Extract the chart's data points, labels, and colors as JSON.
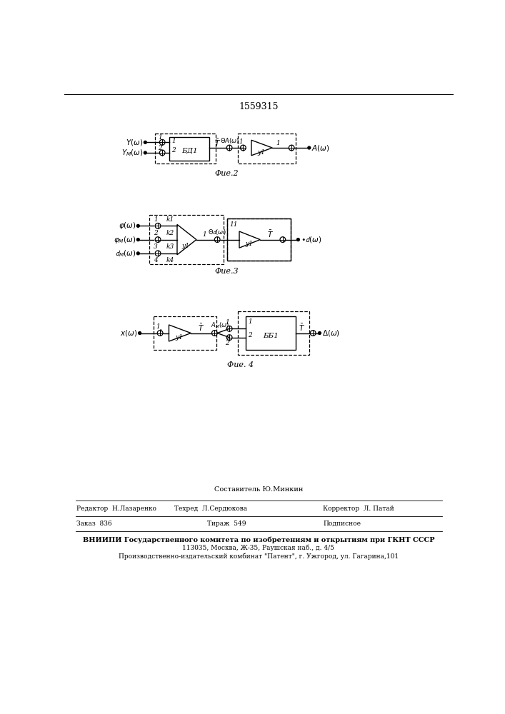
{
  "title": "1559315",
  "fig2_label": "Фие.2",
  "fig3_label": "Фие.3",
  "fig4_label": "Фие. 4",
  "footer_composer": "Составитель Ю.Минкин",
  "footer_editor": "Редактор  Н.Лазаренко",
  "footer_techred": "Техред  Л.Сердюкова",
  "footer_corrector": "Корректор  Л. Патай",
  "footer_order": "Заказ  836",
  "footer_tirazh": "Тираж  549",
  "footer_podpisnoe": "Подписное",
  "footer_vniipи": "ВНИИПИ Государственного комитета по изобретениям и открытиям при ГКНТ СССР",
  "footer_addr": "113035, Москва, Ж-35, Раушская наб., д. 4/5",
  "footer_patent": "Производственно-издательский комбинат \"Патент\", г. Ужгород, ул. Гагарина,101",
  "bg_color": "#ffffff"
}
